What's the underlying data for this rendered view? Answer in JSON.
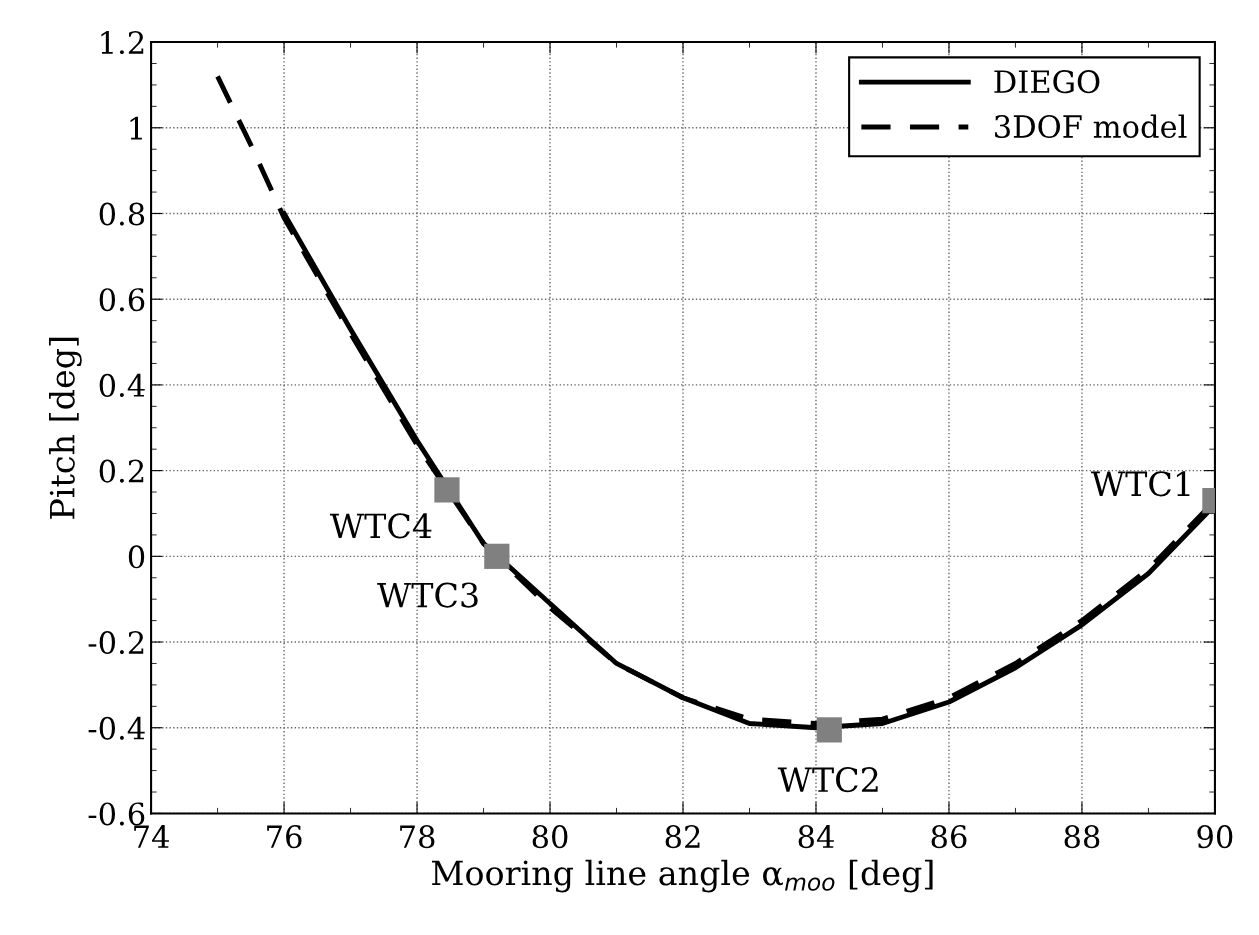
{
  "chart_data": {
    "type": "line",
    "xlabel": "Mooring line angle α$_{moo}$ [deg]",
    "ylabel": "Pitch [deg]",
    "xlim": [
      74,
      90
    ],
    "xticks": [
      74,
      76,
      78,
      80,
      82,
      84,
      86,
      88,
      90
    ],
    "ylim": [
      -0.6,
      1.2
    ],
    "yticks": [
      -0.6,
      -0.4,
      -0.2,
      0,
      0.2,
      0.4,
      0.6,
      0.8,
      1,
      1.2
    ],
    "grid": true,
    "legend": "top right",
    "series": [
      {
        "name": "DIEGO",
        "color": "#000000",
        "line_style": "solid",
        "x": [
          76,
          77,
          78,
          79,
          80,
          81,
          82,
          83,
          84,
          85,
          86,
          87,
          88,
          89,
          90
        ],
        "values": [
          0.8,
          0.53,
          0.27,
          0.03,
          -0.11,
          -0.25,
          -0.33,
          -0.39,
          -0.4,
          -0.39,
          -0.34,
          -0.26,
          -0.16,
          -0.04,
          0.12
        ]
      },
      {
        "name": "3DOF model",
        "color": "#000000",
        "line_style": "dashed",
        "x": [
          75,
          75.5,
          76,
          77,
          78,
          79,
          80,
          81,
          82,
          83,
          84,
          85,
          86,
          87,
          88,
          89,
          90
        ],
        "values": [
          1.12,
          0.96,
          0.79,
          0.52,
          0.26,
          0.03,
          -0.12,
          -0.25,
          -0.33,
          -0.38,
          -0.39,
          -0.38,
          -0.33,
          -0.25,
          -0.15,
          -0.03,
          0.13
        ]
      },
      {
        "type": "scatter",
        "marker": "square",
        "color": "#808080",
        "x": [
          78.45,
          79.2,
          84.2,
          90
        ],
        "values": [
          0.155,
          0,
          -0.405,
          0.13
        ]
      }
    ],
    "annotations": [
      {
        "text": "WTC4",
        "x": 78.45,
        "y": 0.155
      },
      {
        "text": "WTC3",
        "x": 79.2,
        "y": 0
      },
      {
        "text": "WTC2",
        "x": 84.2,
        "y": -0.405
      },
      {
        "text": "WTC1",
        "x": 90,
        "y": 0.13
      }
    ]
  }
}
